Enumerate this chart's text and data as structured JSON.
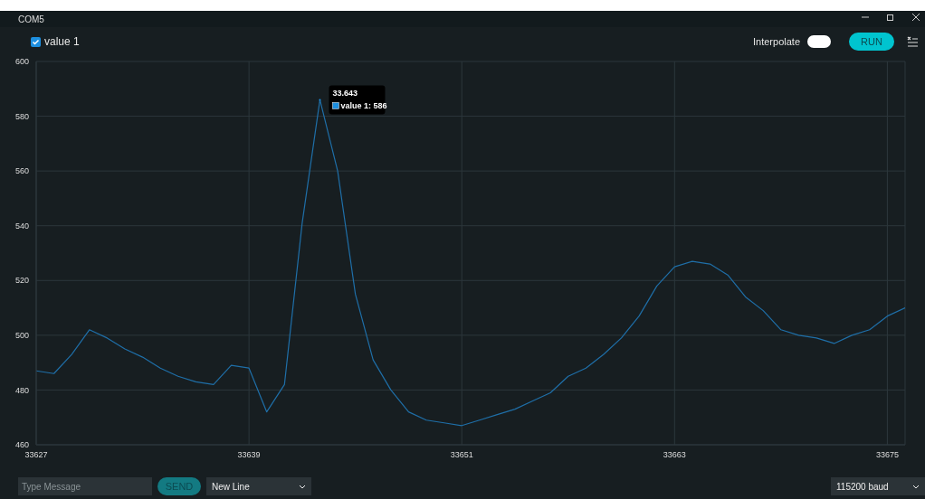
{
  "chart_data": {
    "type": "line",
    "title": "COM5",
    "x": [
      33627,
      33628,
      33629,
      33630,
      33631,
      33632,
      33633,
      33634,
      33635,
      33636,
      33637,
      33638,
      33639,
      33640,
      33641,
      33642,
      33643,
      33644,
      33645,
      33646,
      33647,
      33648,
      33649,
      33650,
      33651,
      33652,
      33653,
      33654,
      33655,
      33656,
      33657,
      33658,
      33659,
      33660,
      33661,
      33662,
      33663,
      33664,
      33665,
      33666,
      33667,
      33668,
      33669,
      33670,
      33671,
      33672,
      33673,
      33674,
      33675,
      33676
    ],
    "series": [
      {
        "name": "value 1",
        "color": "#1f6fa8",
        "values": [
          487,
          486,
          493,
          502,
          499,
          495,
          492,
          488,
          485,
          483,
          482,
          489,
          488,
          472,
          482,
          541,
          586,
          560,
          515,
          491,
          480,
          472,
          469,
          468,
          467,
          469,
          471,
          473,
          476,
          479,
          485,
          488,
          493,
          499,
          507,
          518,
          525,
          527,
          526,
          522,
          514,
          509,
          502,
          500,
          499,
          497,
          500,
          502,
          507,
          510
        ]
      }
    ],
    "xlim": [
      33627,
      33676
    ],
    "xticks": [
      33627,
      33639,
      33651,
      33663,
      33675
    ],
    "ylim": [
      460,
      600
    ],
    "yticks": [
      460,
      480,
      500,
      520,
      540,
      560,
      580,
      600
    ],
    "grid": true,
    "legend": "top left",
    "marker": "none",
    "line_style": "solid",
    "annotations": [
      {
        "text": "33.643",
        "x": 33643,
        "y": 586
      },
      {
        "text": "value 1: 586",
        "x": 33643,
        "y": 586
      },
      "Interpolate",
      "RUN",
      "Type Message",
      "SEND",
      "New Line",
      "115200 baud"
    ]
  }
}
